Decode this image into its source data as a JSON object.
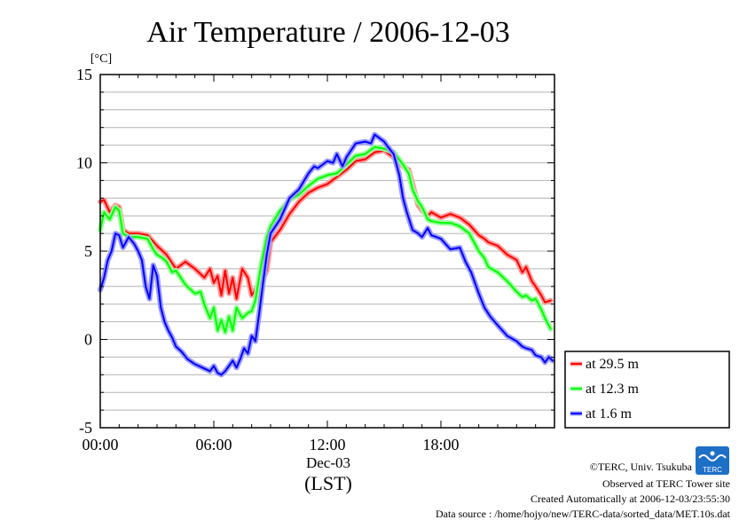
{
  "chart_data": {
    "type": "line",
    "title": "Air Temperature / 2006-12-03",
    "ylabel": "[°C]",
    "xlabel_date": "Dec-03",
    "xlabel_tz": "(LST)",
    "xlim": [
      0,
      24
    ],
    "ylim": [
      -5,
      15
    ],
    "yticks": [
      15,
      10,
      5,
      0,
      -5
    ],
    "xticks": [
      {
        "value": 0,
        "label": "00:00"
      },
      {
        "value": 6,
        "label": "06:00"
      },
      {
        "value": 12,
        "label": "12:00"
      },
      {
        "value": 18,
        "label": "18:00"
      }
    ],
    "grid": true,
    "legend": "right",
    "series": [
      {
        "name": "at 29.5 m",
        "color": "#ff0000",
        "glow": "#ff9a9a",
        "x": [
          0,
          0.2,
          0.5,
          0.8,
          1.0,
          1.2,
          1.5,
          2.0,
          2.5,
          3.0,
          3.5,
          4.0,
          4.5,
          5.0,
          5.5,
          5.8,
          6.0,
          6.2,
          6.4,
          6.6,
          6.8,
          7.0,
          7.2,
          7.5,
          7.8,
          8.0,
          8.2,
          8.5,
          8.8,
          9.0,
          9.5,
          10.0,
          10.5,
          11.0,
          11.5,
          12.0,
          12.5,
          13.0,
          13.5,
          14.0,
          14.5,
          15.0,
          15.5,
          16.0,
          16.3,
          16.5,
          16.8,
          17.0,
          17.3,
          17.5,
          18.0,
          18.5,
          19.0,
          19.5,
          20.0,
          20.3,
          20.5,
          21.0,
          21.5,
          22.0,
          22.3,
          22.5,
          22.8,
          23.0,
          23.3,
          23.5,
          23.8
        ],
        "values": [
          7.8,
          7.9,
          7.2,
          7.6,
          7.5,
          6.2,
          6.0,
          6.0,
          5.9,
          5.3,
          4.8,
          4.0,
          4.4,
          4.0,
          3.5,
          4.0,
          3.2,
          3.6,
          2.5,
          3.9,
          2.6,
          3.5,
          2.3,
          4.0,
          3.5,
          2.5,
          2.8,
          3.2,
          3.9,
          5.5,
          6.2,
          7.1,
          7.8,
          8.3,
          8.6,
          8.8,
          9.2,
          9.6,
          10.1,
          10.2,
          10.6,
          10.7,
          10.3,
          9.8,
          9.6,
          8.8,
          7.6,
          7.3,
          7.0,
          7.2,
          6.9,
          7.1,
          6.9,
          6.5,
          5.9,
          5.7,
          5.5,
          5.3,
          4.8,
          4.5,
          3.8,
          4.1,
          3.3,
          3.0,
          2.5,
          2.1,
          2.2
        ]
      },
      {
        "name": "at 12.3 m",
        "color": "#00ff00",
        "glow": "#9aff9a",
        "x": [
          0,
          0.2,
          0.5,
          0.8,
          1.0,
          1.2,
          1.5,
          2.0,
          2.5,
          2.8,
          3.0,
          3.3,
          3.5,
          3.8,
          4.0,
          4.5,
          5.0,
          5.3,
          5.5,
          5.8,
          6.0,
          6.2,
          6.4,
          6.6,
          6.8,
          7.0,
          7.2,
          7.5,
          7.8,
          8.0,
          8.2,
          8.5,
          8.8,
          9.0,
          9.5,
          10.0,
          10.5,
          11.0,
          11.5,
          12.0,
          12.5,
          13.0,
          13.5,
          14.0,
          14.5,
          15.0,
          15.5,
          16.0,
          16.3,
          16.5,
          16.8,
          17.0,
          17.3,
          17.5,
          18.0,
          18.5,
          19.0,
          19.5,
          20.0,
          20.3,
          20.5,
          21.0,
          21.5,
          22.0,
          22.3,
          22.5,
          22.8,
          23.0,
          23.3,
          23.5,
          23.8
        ],
        "values": [
          6.2,
          7.2,
          6.8,
          7.5,
          7.3,
          6.0,
          5.8,
          5.8,
          5.7,
          5.1,
          4.8,
          4.6,
          4.4,
          3.8,
          3.9,
          3.1,
          2.6,
          2.7,
          2.0,
          1.2,
          1.8,
          0.5,
          1.1,
          0.4,
          1.3,
          0.5,
          1.8,
          1.2,
          1.5,
          1.6,
          2.2,
          4.2,
          5.8,
          6.4,
          7.3,
          7.9,
          8.2,
          8.7,
          9.1,
          9.3,
          9.4,
          9.9,
          10.4,
          10.5,
          10.9,
          10.8,
          10.6,
          9.9,
          9.4,
          8.5,
          7.8,
          7.5,
          6.8,
          6.7,
          6.6,
          6.6,
          6.4,
          6.0,
          5.0,
          4.6,
          4.1,
          3.8,
          3.3,
          2.7,
          2.4,
          2.5,
          2.2,
          2.3,
          1.7,
          1.2,
          0.6
        ]
      },
      {
        "name": "at 1.6 m",
        "color": "#0000ff",
        "glow": "#9a9aff",
        "x": [
          0,
          0.2,
          0.4,
          0.6,
          0.8,
          1.0,
          1.2,
          1.5,
          1.8,
          2.0,
          2.2,
          2.4,
          2.6,
          2.8,
          3.0,
          3.2,
          3.4,
          3.6,
          3.8,
          4.0,
          4.3,
          4.6,
          5.0,
          5.4,
          5.8,
          6.0,
          6.2,
          6.4,
          6.6,
          6.8,
          7.0,
          7.2,
          7.4,
          7.6,
          7.8,
          8.0,
          8.2,
          8.4,
          8.6,
          8.8,
          9.0,
          9.5,
          10.0,
          10.5,
          11.0,
          11.3,
          11.5,
          12.0,
          12.3,
          12.5,
          12.8,
          13.0,
          13.5,
          14.0,
          14.3,
          14.5,
          15.0,
          15.2,
          15.5,
          15.8,
          16.0,
          16.2,
          16.5,
          16.8,
          17.0,
          17.3,
          17.5,
          18.0,
          18.5,
          19.0,
          19.3,
          19.6,
          20.0,
          20.3,
          20.6,
          21.0,
          21.5,
          22.0,
          22.3,
          22.5,
          22.8,
          23.0,
          23.3,
          23.5,
          23.7,
          23.9
        ],
        "values": [
          2.8,
          3.5,
          4.5,
          5.0,
          6.0,
          5.9,
          5.2,
          5.8,
          5.4,
          5.0,
          4.5,
          3.0,
          2.3,
          4.2,
          3.6,
          1.8,
          1.0,
          0.5,
          0.1,
          -0.4,
          -0.7,
          -1.1,
          -1.4,
          -1.6,
          -1.8,
          -1.5,
          -1.9,
          -2.0,
          -1.8,
          -1.5,
          -1.2,
          -1.6,
          -1.1,
          -0.5,
          -0.8,
          0.2,
          -0.1,
          1.5,
          3.2,
          4.8,
          6.0,
          6.8,
          8.0,
          8.5,
          9.4,
          9.8,
          9.7,
          10.1,
          10.0,
          10.5,
          9.8,
          10.3,
          11.1,
          11.2,
          11.1,
          11.6,
          11.2,
          10.9,
          10.5,
          9.3,
          8.0,
          7.2,
          6.2,
          6.0,
          5.8,
          6.3,
          5.9,
          5.7,
          5.1,
          5.2,
          4.4,
          3.8,
          2.6,
          1.8,
          1.3,
          0.8,
          0.2,
          -0.1,
          -0.4,
          -0.5,
          -0.6,
          -0.9,
          -1.0,
          -1.3,
          -1.0,
          -1.2
        ]
      }
    ]
  },
  "credits": {
    "copyright": "©TERC, Univ. Tsukuba",
    "observed": "Observed at TERC Tower site",
    "created": "Created Automatically at 2006-12-03/23:55:30",
    "source": "Data source : /home/hojyo/new/TERC-data/sorted_data/MET.10s.dat",
    "logo_text": "TERC"
  },
  "colors": {
    "grid": "#b4b4b4",
    "frame": "#000000",
    "logo": "#1e6fc6"
  }
}
